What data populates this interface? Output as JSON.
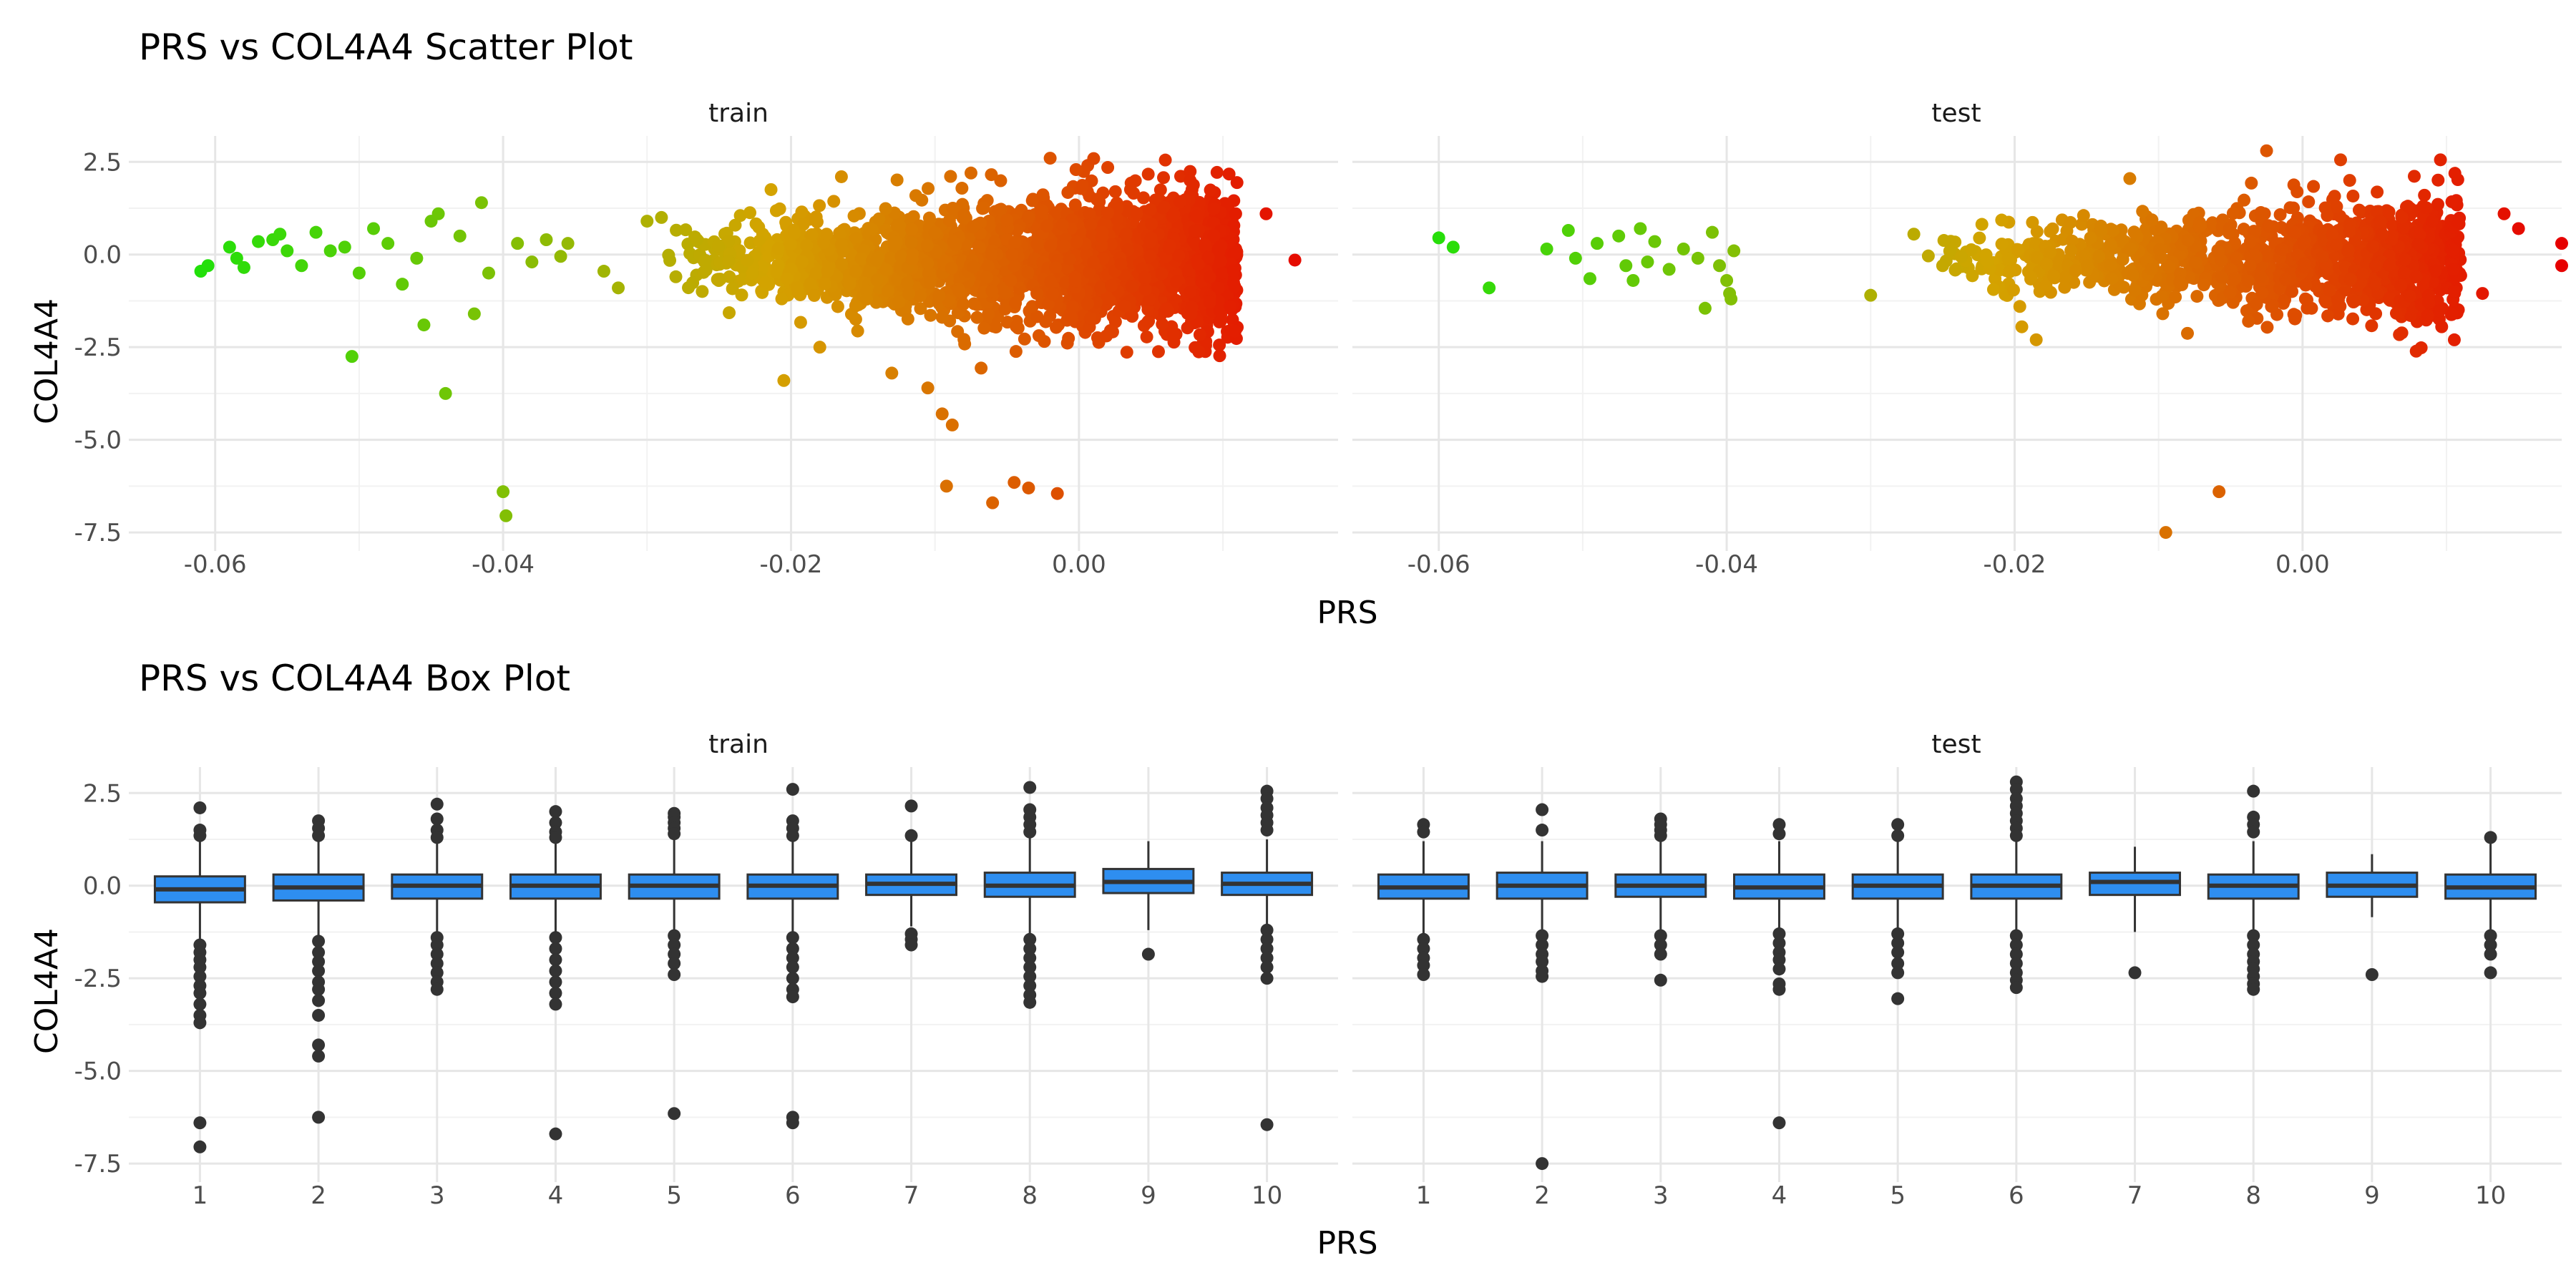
{
  "chart_data": [
    {
      "type": "scatter",
      "title": "PRS vs COL4A4 Scatter Plot",
      "xlabel": "PRS",
      "ylabel": "COL4A4",
      "facets": [
        "train",
        "test"
      ],
      "xlim": [
        -0.066,
        0.018
      ],
      "ylim": [
        -8.0,
        3.2
      ],
      "x_ticks": [
        -0.06,
        -0.04,
        -0.02,
        0.0
      ],
      "x_tick_labels": [
        "-0.06",
        "-0.04",
        "-0.02",
        "0.00"
      ],
      "y_ticks": [
        2.5,
        0.0,
        -2.5,
        -5.0,
        -7.5
      ],
      "y_tick_labels": [
        "2.5",
        "0.0",
        "-2.5",
        "-5.0",
        "-7.5"
      ],
      "color_scale": {
        "low": "#22e00a",
        "mid": "#d4a300",
        "high": "#e60000"
      },
      "grid": true,
      "panels": [
        {
          "facet": "train",
          "points": [
            [
              -0.061,
              -0.45
            ],
            [
              -0.0605,
              -0.3
            ],
            [
              -0.059,
              0.2
            ],
            [
              -0.0585,
              -0.1
            ],
            [
              -0.058,
              -0.35
            ],
            [
              -0.057,
              0.35
            ],
            [
              -0.056,
              0.4
            ],
            [
              -0.0555,
              0.55
            ],
            [
              -0.055,
              0.1
            ],
            [
              -0.054,
              -0.3
            ],
            [
              -0.053,
              0.6
            ],
            [
              -0.052,
              0.1
            ],
            [
              -0.051,
              0.2
            ],
            [
              -0.0505,
              -2.75
            ],
            [
              -0.05,
              -0.5
            ],
            [
              -0.049,
              0.7
            ],
            [
              -0.048,
              0.3
            ],
            [
              -0.047,
              -0.8
            ],
            [
              -0.046,
              -0.1
            ],
            [
              -0.0455,
              -1.9
            ],
            [
              -0.045,
              0.9
            ],
            [
              -0.0445,
              1.1
            ],
            [
              -0.044,
              -3.75
            ],
            [
              -0.043,
              0.5
            ],
            [
              -0.042,
              -1.6
            ],
            [
              -0.0415,
              1.4
            ],
            [
              -0.041,
              -0.5
            ],
            [
              -0.04,
              -6.4
            ],
            [
              -0.0398,
              -7.05
            ],
            [
              -0.039,
              0.3
            ],
            [
              -0.038,
              -0.2
            ],
            [
              -0.037,
              0.4
            ],
            [
              -0.036,
              -0.05
            ],
            [
              -0.0355,
              0.3
            ],
            [
              -0.033,
              -0.45
            ],
            [
              -0.032,
              -0.9
            ],
            [
              -0.03,
              0.9
            ],
            [
              -0.029,
              1.0
            ],
            [
              -0.028,
              -0.6
            ],
            [
              -0.026,
              -0.2
            ],
            [
              -0.0205,
              -3.4
            ],
            [
              -0.018,
              -2.5
            ],
            [
              -0.0165,
              2.1
            ],
            [
              -0.013,
              -3.2
            ],
            [
              -0.0105,
              -3.6
            ],
            [
              -0.0095,
              -4.3
            ],
            [
              -0.0088,
              -4.6
            ],
            [
              -0.0092,
              -6.25
            ],
            [
              -0.006,
              -6.7
            ],
            [
              -0.0045,
              -6.15
            ],
            [
              -0.0035,
              -6.3
            ],
            [
              -0.0015,
              -6.45
            ],
            [
              -0.002,
              2.6
            ],
            [
              0.002,
              2.35
            ],
            [
              0.006,
              2.55
            ],
            [
              0.0078,
              -1.6
            ],
            [
              0.0105,
              -1.4
            ],
            [
              0.013,
              1.1
            ],
            [
              0.015,
              -0.15
            ],
            [
              -0.0075,
              2.2
            ]
          ]
        },
        {
          "facet": "test",
          "points": [
            [
              -0.06,
              0.45
            ],
            [
              -0.059,
              0.2
            ],
            [
              -0.0565,
              -0.9
            ],
            [
              -0.0525,
              0.15
            ],
            [
              -0.051,
              0.65
            ],
            [
              -0.0505,
              -0.1
            ],
            [
              -0.0495,
              -0.65
            ],
            [
              -0.049,
              0.3
            ],
            [
              -0.0475,
              0.5
            ],
            [
              -0.047,
              -0.3
            ],
            [
              -0.0465,
              -0.7
            ],
            [
              -0.046,
              0.7
            ],
            [
              -0.0455,
              -0.2
            ],
            [
              -0.045,
              0.35
            ],
            [
              -0.044,
              -0.4
            ],
            [
              -0.043,
              0.15
            ],
            [
              -0.042,
              -0.1
            ],
            [
              -0.0415,
              -1.45
            ],
            [
              -0.041,
              0.6
            ],
            [
              -0.0405,
              -0.3
            ],
            [
              -0.04,
              -0.7
            ],
            [
              -0.0398,
              -1.05
            ],
            [
              -0.0397,
              -1.2
            ],
            [
              -0.0395,
              0.1
            ],
            [
              -0.03,
              -1.1
            ],
            [
              -0.027,
              0.55
            ],
            [
              -0.025,
              -0.3
            ],
            [
              -0.0195,
              -1.95
            ],
            [
              -0.0185,
              -2.3
            ],
            [
              -0.012,
              2.05
            ],
            [
              -0.0095,
              -7.5
            ],
            [
              -0.0058,
              -6.4
            ],
            [
              -0.0025,
              2.8
            ],
            [
              0.006,
              1.15
            ],
            [
              0.009,
              0.9
            ],
            [
              0.0105,
              -0.4
            ],
            [
              0.0125,
              -1.05
            ],
            [
              0.014,
              1.1
            ],
            [
              0.015,
              0.7
            ],
            [
              0.018,
              0.3
            ],
            [
              0.018,
              -0.3
            ]
          ]
        }
      ],
      "dense_clusters": [
        {
          "facet": "train",
          "x_range": [
            -0.029,
            0.011
          ],
          "y_center": -0.15,
          "y_spread": 1.0,
          "count": 2300
        },
        {
          "facet": "test",
          "x_range": [
            -0.027,
            0.011
          ],
          "y_center": -0.15,
          "y_spread": 0.85,
          "count": 1200
        }
      ]
    },
    {
      "type": "box",
      "title": "PRS vs COL4A4 Box Plot",
      "xlabel": "PRS",
      "ylabel": "COL4A4",
      "facets": [
        "train",
        "test"
      ],
      "categories": [
        "1",
        "2",
        "3",
        "4",
        "5",
        "6",
        "7",
        "8",
        "9",
        "10"
      ],
      "ylim": [
        -8.0,
        3.2
      ],
      "y_ticks": [
        2.5,
        0.0,
        -2.5,
        -5.0,
        -7.5
      ],
      "y_tick_labels": [
        "2.5",
        "0.0",
        "-2.5",
        "-5.0",
        "-7.5"
      ],
      "box_fill": "#2e8ef0",
      "grid": true,
      "panels": [
        {
          "facet": "train",
          "boxes": [
            {
              "category": "1",
              "q1": -0.45,
              "median": -0.1,
              "q3": 0.25,
              "whisker_low": -1.45,
              "whisker_high": 1.25,
              "outliers": [
                2.1,
                1.5,
                1.35,
                -1.6,
                -1.8,
                -2.0,
                -2.2,
                -2.45,
                -2.7,
                -2.9,
                -3.2,
                -3.5,
                -3.7,
                -6.4,
                -7.05
              ]
            },
            {
              "category": "2",
              "q1": -0.4,
              "median": -0.05,
              "q3": 0.3,
              "whisker_low": -1.35,
              "whisker_high": 1.2,
              "outliers": [
                1.75,
                1.55,
                1.35,
                -1.5,
                -1.8,
                -2.05,
                -2.3,
                -2.6,
                -2.8,
                -3.1,
                -3.5,
                -4.3,
                -4.6,
                -6.25
              ]
            },
            {
              "category": "3",
              "q1": -0.35,
              "median": 0.0,
              "q3": 0.3,
              "whisker_low": -1.3,
              "whisker_high": 1.15,
              "outliers": [
                2.2,
                1.8,
                1.5,
                1.3,
                -1.4,
                -1.6,
                -1.85,
                -2.1,
                -2.35,
                -2.6,
                -2.8
              ]
            },
            {
              "category": "4",
              "q1": -0.35,
              "median": 0.0,
              "q3": 0.3,
              "whisker_low": -1.3,
              "whisker_high": 1.2,
              "outliers": [
                2.0,
                1.7,
                1.45,
                1.3,
                -1.4,
                -1.7,
                -2.0,
                -2.3,
                -2.6,
                -2.9,
                -3.2,
                -6.7
              ]
            },
            {
              "category": "5",
              "q1": -0.35,
              "median": 0.0,
              "q3": 0.3,
              "whisker_low": -1.25,
              "whisker_high": 1.25,
              "outliers": [
                1.95,
                1.85,
                1.7,
                1.55,
                1.4,
                -1.35,
                -1.6,
                -1.85,
                -2.1,
                -2.4,
                -6.15
              ]
            },
            {
              "category": "6",
              "q1": -0.35,
              "median": 0.0,
              "q3": 0.3,
              "whisker_low": -1.3,
              "whisker_high": 1.2,
              "outliers": [
                2.6,
                1.75,
                1.55,
                1.35,
                -1.4,
                -1.7,
                -1.95,
                -2.2,
                -2.5,
                -2.8,
                -3.0,
                -6.25,
                -6.4
              ]
            },
            {
              "category": "7",
              "q1": -0.25,
              "median": 0.05,
              "q3": 0.3,
              "whisker_low": -1.1,
              "whisker_high": 1.2,
              "outliers": [
                2.15,
                1.35,
                -1.3,
                -1.45,
                -1.6
              ]
            },
            {
              "category": "8",
              "q1": -0.3,
              "median": 0.0,
              "q3": 0.35,
              "whisker_low": -1.3,
              "whisker_high": 1.3,
              "outliers": [
                2.65,
                2.05,
                1.85,
                1.65,
                1.45,
                -1.45,
                -1.7,
                -1.95,
                -2.2,
                -2.45,
                -2.7,
                -2.95,
                -3.15
              ]
            },
            {
              "category": "9",
              "q1": -0.2,
              "median": 0.1,
              "q3": 0.45,
              "whisker_low": -1.2,
              "whisker_high": 1.2,
              "outliers": [
                -1.85
              ]
            },
            {
              "category": "10",
              "q1": -0.25,
              "median": 0.05,
              "q3": 0.35,
              "whisker_low": -1.1,
              "whisker_high": 1.25,
              "outliers": [
                2.55,
                2.35,
                2.1,
                1.9,
                1.7,
                1.5,
                -1.2,
                -1.45,
                -1.7,
                -1.95,
                -2.2,
                -2.5,
                -6.45
              ]
            }
          ]
        },
        {
          "facet": "test",
          "boxes": [
            {
              "category": "1",
              "q1": -0.35,
              "median": -0.05,
              "q3": 0.3,
              "whisker_low": -1.3,
              "whisker_high": 1.2,
              "outliers": [
                1.65,
                1.45,
                -1.45,
                -1.7,
                -1.95,
                -2.15,
                -2.4
              ]
            },
            {
              "category": "2",
              "q1": -0.35,
              "median": 0.0,
              "q3": 0.35,
              "whisker_low": -1.25,
              "whisker_high": 1.2,
              "outliers": [
                2.05,
                1.5,
                -1.35,
                -1.6,
                -1.85,
                -2.05,
                -2.3,
                -2.45,
                -7.5
              ]
            },
            {
              "category": "3",
              "q1": -0.3,
              "median": 0.0,
              "q3": 0.3,
              "whisker_low": -1.2,
              "whisker_high": 1.2,
              "outliers": [
                1.8,
                1.65,
                1.5,
                1.35,
                -1.35,
                -1.6,
                -1.85,
                -2.55
              ]
            },
            {
              "category": "4",
              "q1": -0.35,
              "median": -0.05,
              "q3": 0.3,
              "whisker_low": -1.2,
              "whisker_high": 1.2,
              "outliers": [
                1.65,
                1.4,
                -1.3,
                -1.55,
                -1.8,
                -2.0,
                -2.25,
                -2.65,
                -2.8,
                -6.4
              ]
            },
            {
              "category": "5",
              "q1": -0.35,
              "median": 0.0,
              "q3": 0.3,
              "whisker_low": -1.2,
              "whisker_high": 1.2,
              "outliers": [
                1.65,
                1.35,
                -1.3,
                -1.55,
                -1.8,
                -2.1,
                -2.35,
                -3.05
              ]
            },
            {
              "category": "6",
              "q1": -0.35,
              "median": 0.0,
              "q3": 0.3,
              "whisker_low": -1.25,
              "whisker_high": 1.2,
              "outliers": [
                2.8,
                2.6,
                2.35,
                2.15,
                1.95,
                1.75,
                1.55,
                1.35,
                -1.35,
                -1.6,
                -1.85,
                -2.1,
                -2.35,
                -2.55,
                -2.75
              ]
            },
            {
              "category": "7",
              "q1": -0.25,
              "median": 0.1,
              "q3": 0.35,
              "whisker_low": -1.25,
              "whisker_high": 1.05,
              "outliers": [
                -2.35
              ]
            },
            {
              "category": "8",
              "q1": -0.35,
              "median": 0.0,
              "q3": 0.3,
              "whisker_low": -1.25,
              "whisker_high": 1.2,
              "outliers": [
                2.55,
                1.85,
                1.65,
                1.45,
                -1.35,
                -1.6,
                -1.85,
                -2.05,
                -2.25,
                -2.45,
                -2.65,
                -2.8
              ]
            },
            {
              "category": "9",
              "q1": -0.3,
              "median": 0.0,
              "q3": 0.35,
              "whisker_low": -0.85,
              "whisker_high": 0.85,
              "outliers": [
                -2.4
              ]
            },
            {
              "category": "10",
              "q1": -0.35,
              "median": -0.05,
              "q3": 0.3,
              "whisker_low": -1.25,
              "whisker_high": 1.2,
              "outliers": [
                1.3,
                -1.35,
                -1.6,
                -1.85,
                -2.35
              ]
            }
          ]
        }
      ]
    }
  ]
}
